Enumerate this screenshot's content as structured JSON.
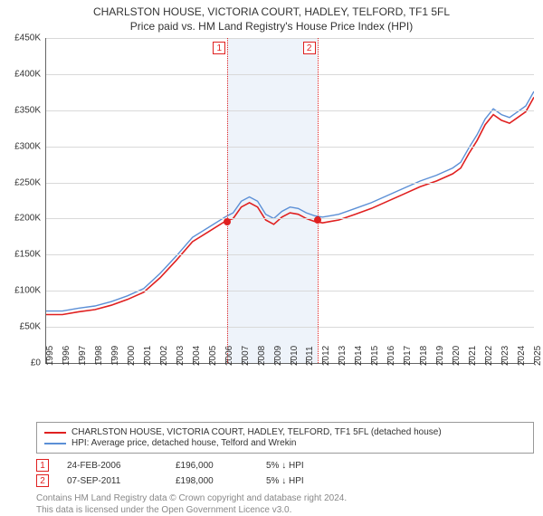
{
  "title_line1": "CHARLSTON HOUSE, VICTORIA COURT, HADLEY, TELFORD, TF1 5FL",
  "title_line2": "Price paid vs. HM Land Registry's House Price Index (HPI)",
  "chart": {
    "type": "line",
    "x_start_year": 1995,
    "x_end_year": 2025,
    "x_ticks": [
      1995,
      1996,
      1997,
      1998,
      1999,
      2000,
      2001,
      2002,
      2003,
      2004,
      2005,
      2006,
      2007,
      2008,
      2009,
      2010,
      2011,
      2012,
      2013,
      2014,
      2015,
      2016,
      2017,
      2018,
      2019,
      2020,
      2021,
      2022,
      2023,
      2024,
      2025
    ],
    "ylim": [
      0,
      450000
    ],
    "ytick_step": 50000,
    "ylabels": [
      "£0",
      "£50K",
      "£100K",
      "£150K",
      "£200K",
      "£250K",
      "£300K",
      "£350K",
      "£400K",
      "£450K"
    ],
    "grid_color": "#d9d9d9",
    "background_color": "#ffffff",
    "band_color": "#eef3fa",
    "band_start_year": 2006.15,
    "band_end_year": 2011.68,
    "series": [
      {
        "name": "property",
        "label": "CHARLSTON HOUSE, VICTORIA COURT, HADLEY, TELFORD, TF1 5FL (detached house)",
        "color": "#e02020",
        "width": 1.6,
        "points": [
          [
            1995,
            67000
          ],
          [
            1996,
            67000
          ],
          [
            1997,
            71000
          ],
          [
            1998,
            74000
          ],
          [
            1999,
            80000
          ],
          [
            2000,
            88000
          ],
          [
            2001,
            98000
          ],
          [
            2002,
            118000
          ],
          [
            2003,
            142000
          ],
          [
            2004,
            168000
          ],
          [
            2005,
            182000
          ],
          [
            2006,
            196000
          ],
          [
            2006.5,
            200000
          ],
          [
            2007,
            216000
          ],
          [
            2007.5,
            222000
          ],
          [
            2008,
            216000
          ],
          [
            2008.5,
            198000
          ],
          [
            2009,
            192000
          ],
          [
            2009.5,
            202000
          ],
          [
            2010,
            208000
          ],
          [
            2010.5,
            206000
          ],
          [
            2011,
            200000
          ],
          [
            2011.5,
            196000
          ],
          [
            2012,
            194000
          ],
          [
            2012.5,
            196000
          ],
          [
            2013,
            198000
          ],
          [
            2014,
            206000
          ],
          [
            2015,
            214000
          ],
          [
            2016,
            224000
          ],
          [
            2017,
            234000
          ],
          [
            2018,
            244000
          ],
          [
            2019,
            252000
          ],
          [
            2020,
            262000
          ],
          [
            2020.5,
            270000
          ],
          [
            2021,
            290000
          ],
          [
            2021.5,
            308000
          ],
          [
            2022,
            330000
          ],
          [
            2022.5,
            344000
          ],
          [
            2023,
            336000
          ],
          [
            2023.5,
            332000
          ],
          [
            2024,
            340000
          ],
          [
            2024.5,
            348000
          ],
          [
            2025,
            368000
          ]
        ]
      },
      {
        "name": "hpi",
        "label": "HPI: Average price, detached house, Telford and Wrekin",
        "color": "#5b8fd6",
        "width": 1.4,
        "points": [
          [
            1995,
            72000
          ],
          [
            1996,
            72000
          ],
          [
            1997,
            76000
          ],
          [
            1998,
            79000
          ],
          [
            1999,
            85000
          ],
          [
            2000,
            93000
          ],
          [
            2001,
            103000
          ],
          [
            2002,
            124000
          ],
          [
            2003,
            148000
          ],
          [
            2004,
            174000
          ],
          [
            2005,
            188000
          ],
          [
            2006,
            202000
          ],
          [
            2006.5,
            208000
          ],
          [
            2007,
            224000
          ],
          [
            2007.5,
            230000
          ],
          [
            2008,
            224000
          ],
          [
            2008.5,
            206000
          ],
          [
            2009,
            200000
          ],
          [
            2009.5,
            210000
          ],
          [
            2010,
            216000
          ],
          [
            2010.5,
            214000
          ],
          [
            2011,
            208000
          ],
          [
            2011.5,
            204000
          ],
          [
            2012,
            202000
          ],
          [
            2012.5,
            204000
          ],
          [
            2013,
            206000
          ],
          [
            2014,
            214000
          ],
          [
            2015,
            222000
          ],
          [
            2016,
            232000
          ],
          [
            2017,
            242000
          ],
          [
            2018,
            252000
          ],
          [
            2019,
            260000
          ],
          [
            2020,
            270000
          ],
          [
            2020.5,
            278000
          ],
          [
            2021,
            298000
          ],
          [
            2021.5,
            316000
          ],
          [
            2022,
            338000
          ],
          [
            2022.5,
            352000
          ],
          [
            2023,
            344000
          ],
          [
            2023.5,
            340000
          ],
          [
            2024,
            348000
          ],
          [
            2024.5,
            356000
          ],
          [
            2025,
            376000
          ]
        ]
      }
    ],
    "markers": [
      {
        "tag": "1",
        "year": 2006.15,
        "price": 196000
      },
      {
        "tag": "2",
        "year": 2011.68,
        "price": 198000
      }
    ]
  },
  "legend": {
    "rows": [
      {
        "color": "#e02020",
        "label": "CHARLSTON HOUSE, VICTORIA COURT, HADLEY, TELFORD, TF1 5FL (detached house)"
      },
      {
        "color": "#5b8fd6",
        "label": "HPI: Average price, detached house, Telford and Wrekin"
      }
    ]
  },
  "events": [
    {
      "tag": "1",
      "date": "24-FEB-2006",
      "price": "£196,000",
      "delta": "5% ↓ HPI"
    },
    {
      "tag": "2",
      "date": "07-SEP-2011",
      "price": "£198,000",
      "delta": "5% ↓ HPI"
    }
  ],
  "footer_line1": "Contains HM Land Registry data © Crown copyright and database right 2024.",
  "footer_line2": "This data is licensed under the Open Government Licence v3.0."
}
